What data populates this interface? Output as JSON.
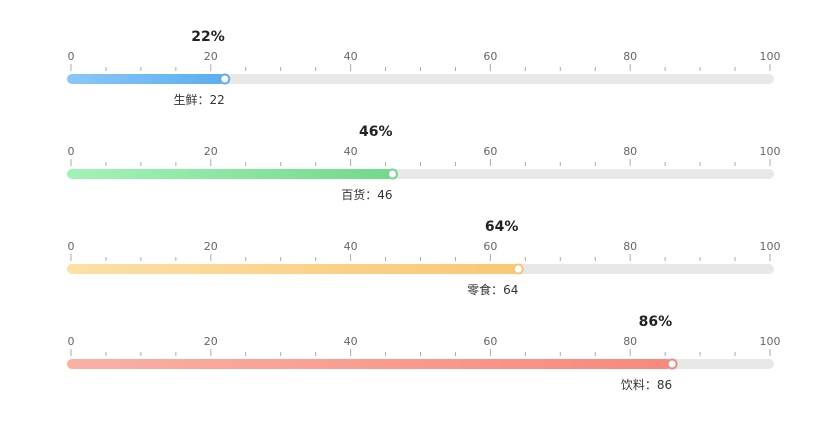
{
  "chart_data": {
    "type": "bar",
    "orientation": "horizontal",
    "xlim": [
      0,
      100
    ],
    "ticks": [
      0,
      20,
      40,
      60,
      80,
      100
    ],
    "separator": "：",
    "suffix": "%",
    "grid": false,
    "items": [
      {
        "name": "生鲜",
        "value": 22,
        "color_start": "#8ac7f7",
        "color_end": "#5aaef0"
      },
      {
        "name": "百货",
        "value": 46,
        "color_start": "#a3f2b8",
        "color_end": "#72d98c"
      },
      {
        "name": "零食",
        "value": 64,
        "color_start": "#fde0a5",
        "color_end": "#f9c774"
      },
      {
        "name": "饮料",
        "value": 86,
        "color_start": "#fbb0a4",
        "color_end": "#f7897c"
      }
    ]
  }
}
